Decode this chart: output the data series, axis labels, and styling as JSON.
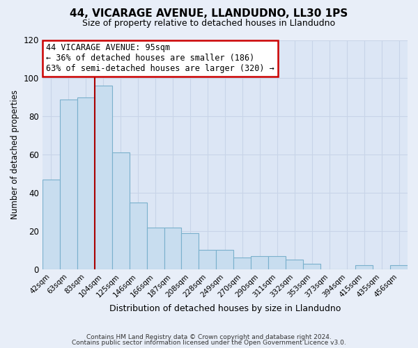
{
  "title": "44, VICARAGE AVENUE, LLANDUDNO, LL30 1PS",
  "subtitle": "Size of property relative to detached houses in Llandudno",
  "xlabel": "Distribution of detached houses by size in Llandudno",
  "ylabel": "Number of detached properties",
  "bar_labels": [
    "42sqm",
    "63sqm",
    "83sqm",
    "104sqm",
    "125sqm",
    "146sqm",
    "166sqm",
    "187sqm",
    "208sqm",
    "228sqm",
    "249sqm",
    "270sqm",
    "290sqm",
    "311sqm",
    "332sqm",
    "353sqm",
    "373sqm",
    "394sqm",
    "415sqm",
    "435sqm",
    "456sqm"
  ],
  "bar_values": [
    47,
    89,
    90,
    96,
    61,
    35,
    22,
    22,
    19,
    10,
    10,
    6,
    7,
    7,
    5,
    3,
    0,
    0,
    2,
    0,
    2
  ],
  "bar_color": "#c8ddef",
  "bar_edge_color": "#7ab0cc",
  "ylim": [
    0,
    120
  ],
  "yticks": [
    0,
    20,
    40,
    60,
    80,
    100,
    120
  ],
  "property_line_x": 3,
  "property_line_color": "#aa0000",
  "annotation_title": "44 VICARAGE AVENUE: 95sqm",
  "annotation_line1": "← 36% of detached houses are smaller (186)",
  "annotation_line2": "63% of semi-detached houses are larger (320) →",
  "annotation_box_color": "#cc0000",
  "footer_line1": "Contains HM Land Registry data © Crown copyright and database right 2024.",
  "footer_line2": "Contains public sector information licensed under the Open Government Licence v3.0.",
  "bg_color": "#e8eef8",
  "plot_bg_color": "#dce6f5",
  "grid_color": "#c8d4e8"
}
